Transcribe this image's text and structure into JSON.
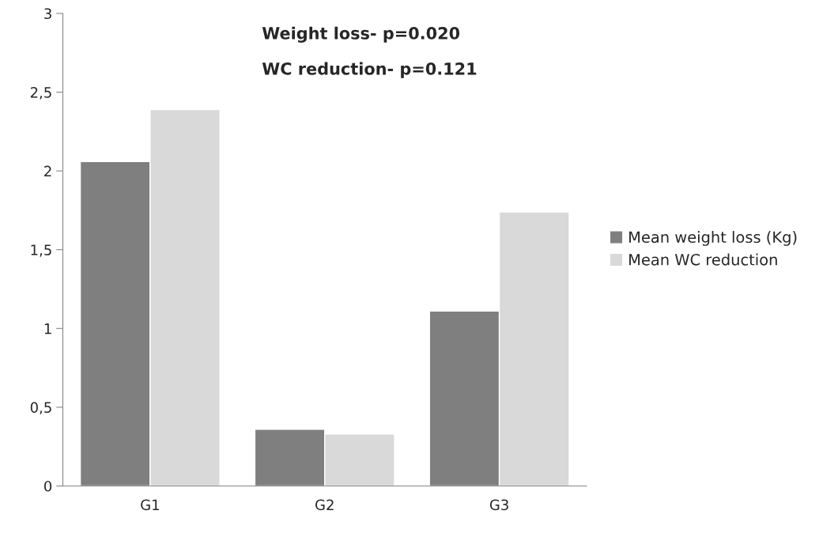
{
  "chart_data": {
    "type": "bar",
    "categories": [
      "G1",
      "G2",
      "G3"
    ],
    "series": [
      {
        "name": "Mean weight loss (Kg)",
        "color": "#7f7f7f",
        "values": [
          2.06,
          0.36,
          1.11
        ]
      },
      {
        "name": "Mean WC reduction",
        "color": "#d9d9d9",
        "values": [
          2.39,
          0.33,
          1.74
        ]
      }
    ],
    "ylim": [
      0,
      3
    ],
    "yticks": [
      0,
      {
        "value": 0.5,
        "label": "0,5"
      },
      1,
      {
        "value": 1.5,
        "label": "1,5"
      },
      2,
      {
        "value": 2.5,
        "label": "2,5"
      },
      3
    ],
    "annotations": [
      "Weight loss- p=0.020",
      "WC reduction- p=0.121"
    ],
    "grid": false,
    "legend": "right"
  }
}
